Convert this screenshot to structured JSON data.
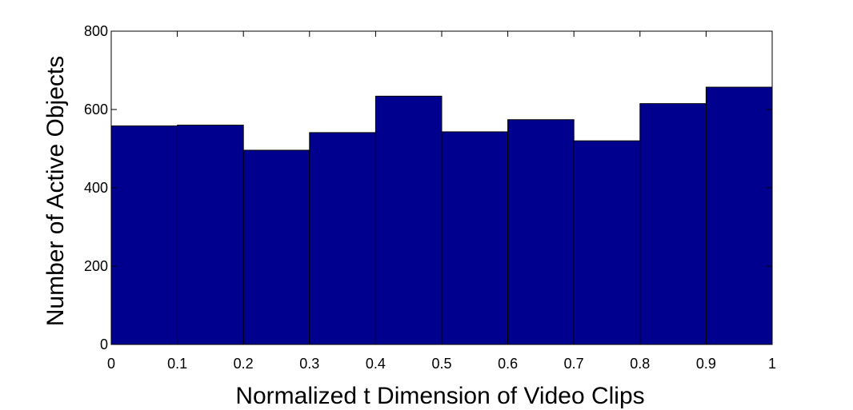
{
  "chart_data": {
    "type": "bar",
    "variant": "histogram",
    "bin_edges": [
      0,
      0.1,
      0.2,
      0.3,
      0.4,
      0.5,
      0.6,
      0.7,
      0.8,
      0.9,
      1
    ],
    "values": [
      558,
      560,
      496,
      541,
      634,
      543,
      574,
      520,
      615,
      657
    ],
    "xlabel": "Normalized t Dimension of Video Clips",
    "ylabel": "Number of Active Objects",
    "xlim": [
      0,
      1
    ],
    "ylim": [
      0,
      800
    ],
    "xticks": [
      "0",
      "0.1",
      "0.2",
      "0.3",
      "0.4",
      "0.5",
      "0.6",
      "0.7",
      "0.8",
      "0.9",
      "1"
    ],
    "yticks": [
      "0",
      "200",
      "400",
      "600",
      "800"
    ],
    "bar_color": "#00008F",
    "edge_color": "#000000",
    "grid": false,
    "legend": "none"
  }
}
